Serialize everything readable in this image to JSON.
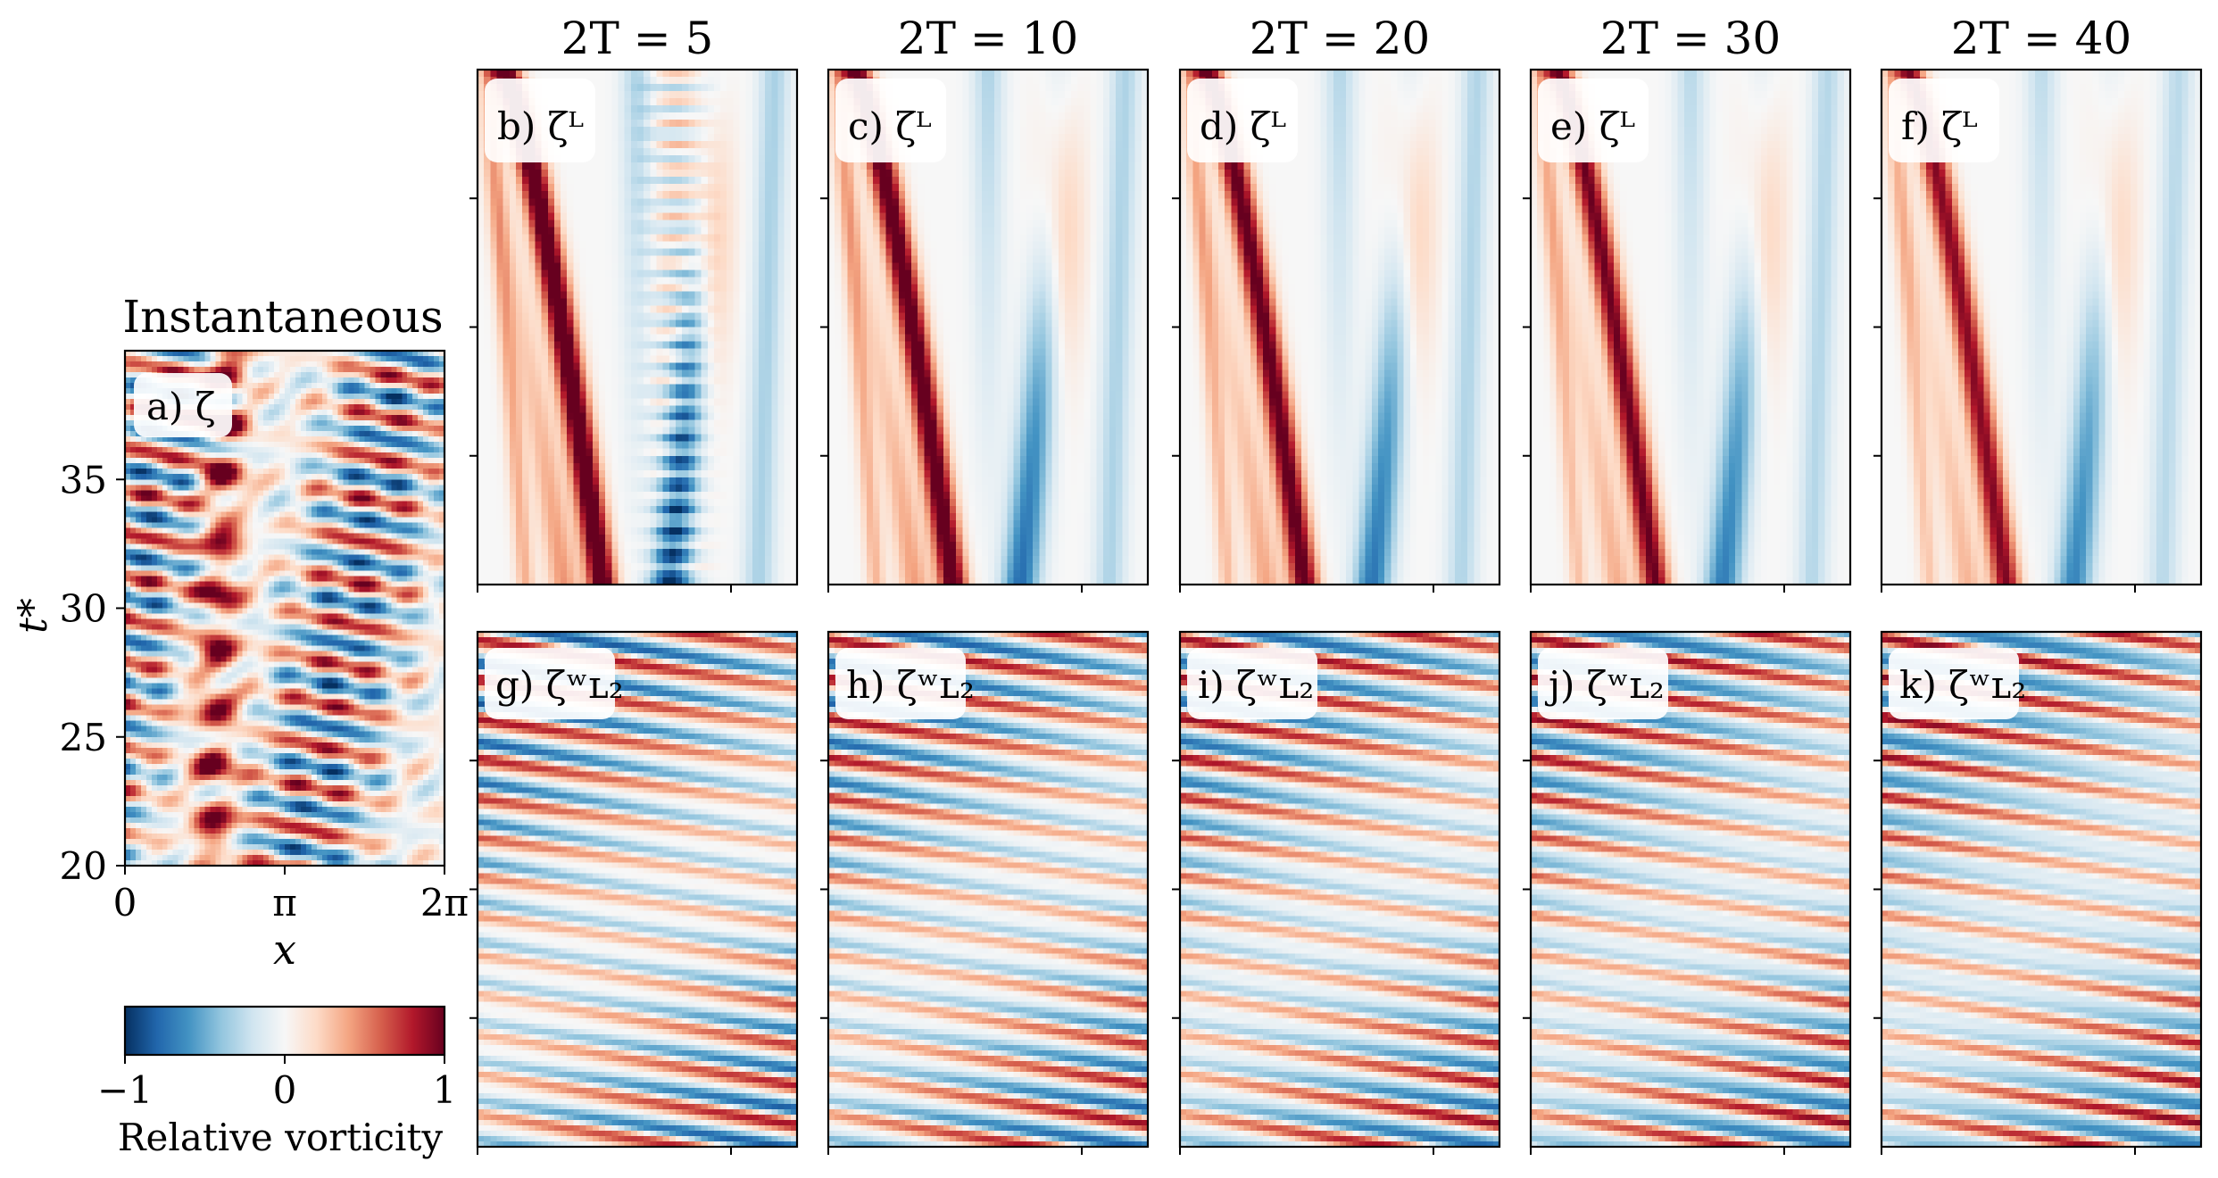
{
  "chart_data": {
    "type": "heatmap",
    "colormap": "RdBu_r",
    "colorbar": {
      "label": "Relative vorticity",
      "range": [
        -1,
        1
      ],
      "ticks": [
        "−1",
        "0",
        "1"
      ],
      "orientation": "horizontal",
      "placement": "bottom-left"
    },
    "instantaneous_panel": {
      "title": "Instantaneous",
      "label": "a) ζ",
      "xlabel": "x",
      "ylabel": "t*",
      "xticks": [
        "0",
        "π",
        "2π"
      ],
      "xlim": [
        0,
        6.283
      ],
      "yticks": [
        "20",
        "25",
        "30",
        "35"
      ],
      "ylim": [
        20,
        40
      ]
    },
    "columns": [
      {
        "title": "2T = 5",
        "top_label": "b) ζ̅ᴸ",
        "bottom_label": "g) ζʷʟ₂"
      },
      {
        "title": "2T = 10",
        "top_label": "c) ζ̅ᴸ",
        "bottom_label": "h) ζʷʟ₂"
      },
      {
        "title": "2T = 20",
        "top_label": "d) ζ̅ᴸ",
        "bottom_label": "i) ζʷʟ₂"
      },
      {
        "title": "2T = 30",
        "top_label": "e) ζ̅ᴸ",
        "bottom_label": "j) ζʷʟ₂"
      },
      {
        "title": "2T = 40",
        "top_label": "f) ζ̅ᴸ",
        "bottom_label": "k) ζʷʟ₂"
      }
    ]
  }
}
